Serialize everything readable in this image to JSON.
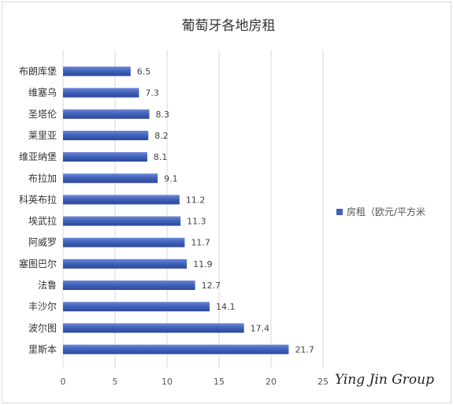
{
  "chart_data": {
    "type": "bar",
    "orientation": "horizontal",
    "title": "葡萄牙各地房租",
    "categories": [
      "布朗库堡",
      "维塞乌",
      "圣塔伦",
      "莱里亚",
      "维亚纳堡",
      "布拉加",
      "科英布拉",
      "埃武拉",
      "阿威罗",
      "塞图巴尔",
      "法鲁",
      "丰沙尔",
      "波尔图",
      "里斯本"
    ],
    "series": [
      {
        "name": "房租（欧元/平方米",
        "values": [
          6.5,
          7.3,
          8.3,
          8.2,
          8.1,
          9.1,
          11.2,
          11.3,
          11.7,
          11.9,
          12.7,
          14.1,
          17.4,
          21.7
        ]
      }
    ],
    "xlim": [
      0,
      25
    ],
    "xticks": [
      0,
      5,
      10,
      15,
      20,
      25
    ],
    "grid": true,
    "legend_position": "right",
    "bar_color": "#4060b8"
  },
  "watermark": "Ying Jin Group"
}
